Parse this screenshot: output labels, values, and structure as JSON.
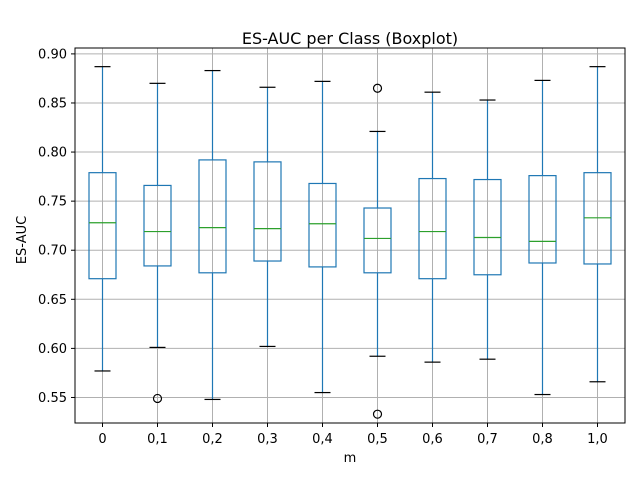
{
  "chart_data": {
    "type": "boxplot",
    "title": "ES-AUC per Class (Boxplot)",
    "xlabel": "m",
    "ylabel": "ES-AUC",
    "grid": true,
    "ylim": [
      0.524,
      0.906
    ],
    "yticks": [
      0.55,
      0.6,
      0.65,
      0.7,
      0.75,
      0.8,
      0.85,
      0.9
    ],
    "ytick_labels": [
      "0.55",
      "0.60",
      "0.65",
      "0.70",
      "0.75",
      "0.80",
      "0.85",
      "0.90"
    ],
    "categories": [
      "0",
      "0,1",
      "0,2",
      "0,3",
      "0,4",
      "0,5",
      "0,6",
      "0,7",
      "0,8",
      "1,0"
    ],
    "boxes": [
      {
        "whisker_low": 0.577,
        "q1": 0.671,
        "median": 0.728,
        "q3": 0.779,
        "whisker_high": 0.887,
        "outliers": []
      },
      {
        "whisker_low": 0.601,
        "q1": 0.684,
        "median": 0.719,
        "q3": 0.766,
        "whisker_high": 0.87,
        "outliers": [
          0.549
        ]
      },
      {
        "whisker_low": 0.548,
        "q1": 0.677,
        "median": 0.723,
        "q3": 0.792,
        "whisker_high": 0.883,
        "outliers": []
      },
      {
        "whisker_low": 0.602,
        "q1": 0.689,
        "median": 0.722,
        "q3": 0.79,
        "whisker_high": 0.866,
        "outliers": []
      },
      {
        "whisker_low": 0.555,
        "q1": 0.683,
        "median": 0.727,
        "q3": 0.768,
        "whisker_high": 0.872,
        "outliers": []
      },
      {
        "whisker_low": 0.592,
        "q1": 0.677,
        "median": 0.712,
        "q3": 0.743,
        "whisker_high": 0.821,
        "outliers": [
          0.865,
          0.533
        ]
      },
      {
        "whisker_low": 0.586,
        "q1": 0.671,
        "median": 0.719,
        "q3": 0.773,
        "whisker_high": 0.861,
        "outliers": []
      },
      {
        "whisker_low": 0.589,
        "q1": 0.675,
        "median": 0.713,
        "q3": 0.772,
        "whisker_high": 0.853,
        "outliers": []
      },
      {
        "whisker_low": 0.553,
        "q1": 0.687,
        "median": 0.709,
        "q3": 0.776,
        "whisker_high": 0.873,
        "outliers": []
      },
      {
        "whisker_low": 0.566,
        "q1": 0.686,
        "median": 0.733,
        "q3": 0.779,
        "whisker_high": 0.887,
        "outliers": []
      }
    ],
    "colors": {
      "box": "#1f77b4",
      "median": "#2ca02c",
      "whisker_cap": "#000000",
      "grid": "#b0b0b0",
      "outlier": "#000000"
    }
  }
}
